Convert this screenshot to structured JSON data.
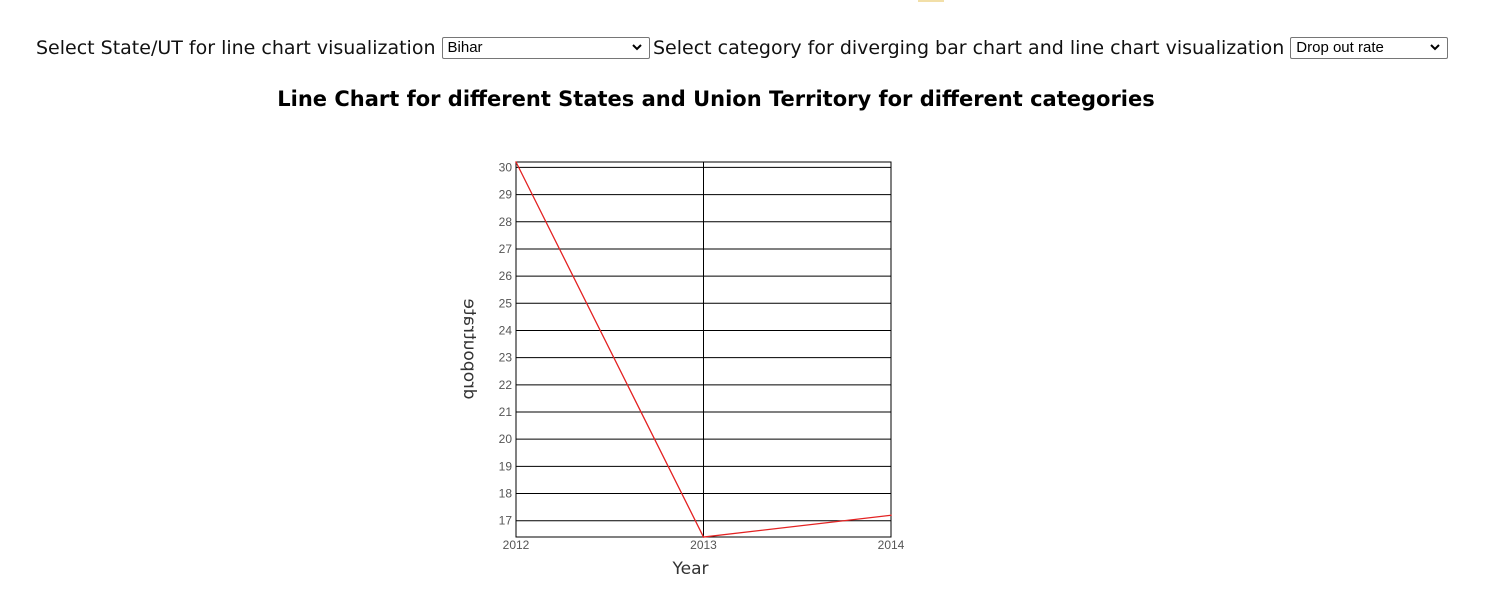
{
  "controls": {
    "state_label": "Select State/UT for line chart visualization",
    "state_selected": "Bihar",
    "category_label": "Select category for diverging bar chart and line chart visualization",
    "category_selected": "Drop out rate"
  },
  "colors": {
    "line": "#e32222",
    "grid": "#000000",
    "accent": "#f2dfa8"
  },
  "chart_data": {
    "type": "line",
    "title": "Line Chart for different States and Union Territory for different categories",
    "xlabel": "Year",
    "ylabel": "dropoutrate",
    "ylabel_rotation": "upside-down",
    "x": [
      2012,
      2013,
      2014
    ],
    "x_ticks": [
      "2012",
      "2013",
      "2014"
    ],
    "series": [
      {
        "values": [
          30.2,
          16.4,
          17.2
        ]
      }
    ],
    "y_ticks": [
      17,
      18,
      19,
      20,
      21,
      22,
      23,
      24,
      25,
      26,
      27,
      28,
      29,
      30
    ],
    "ylim": [
      16.4,
      30.2
    ],
    "grid": true
  }
}
